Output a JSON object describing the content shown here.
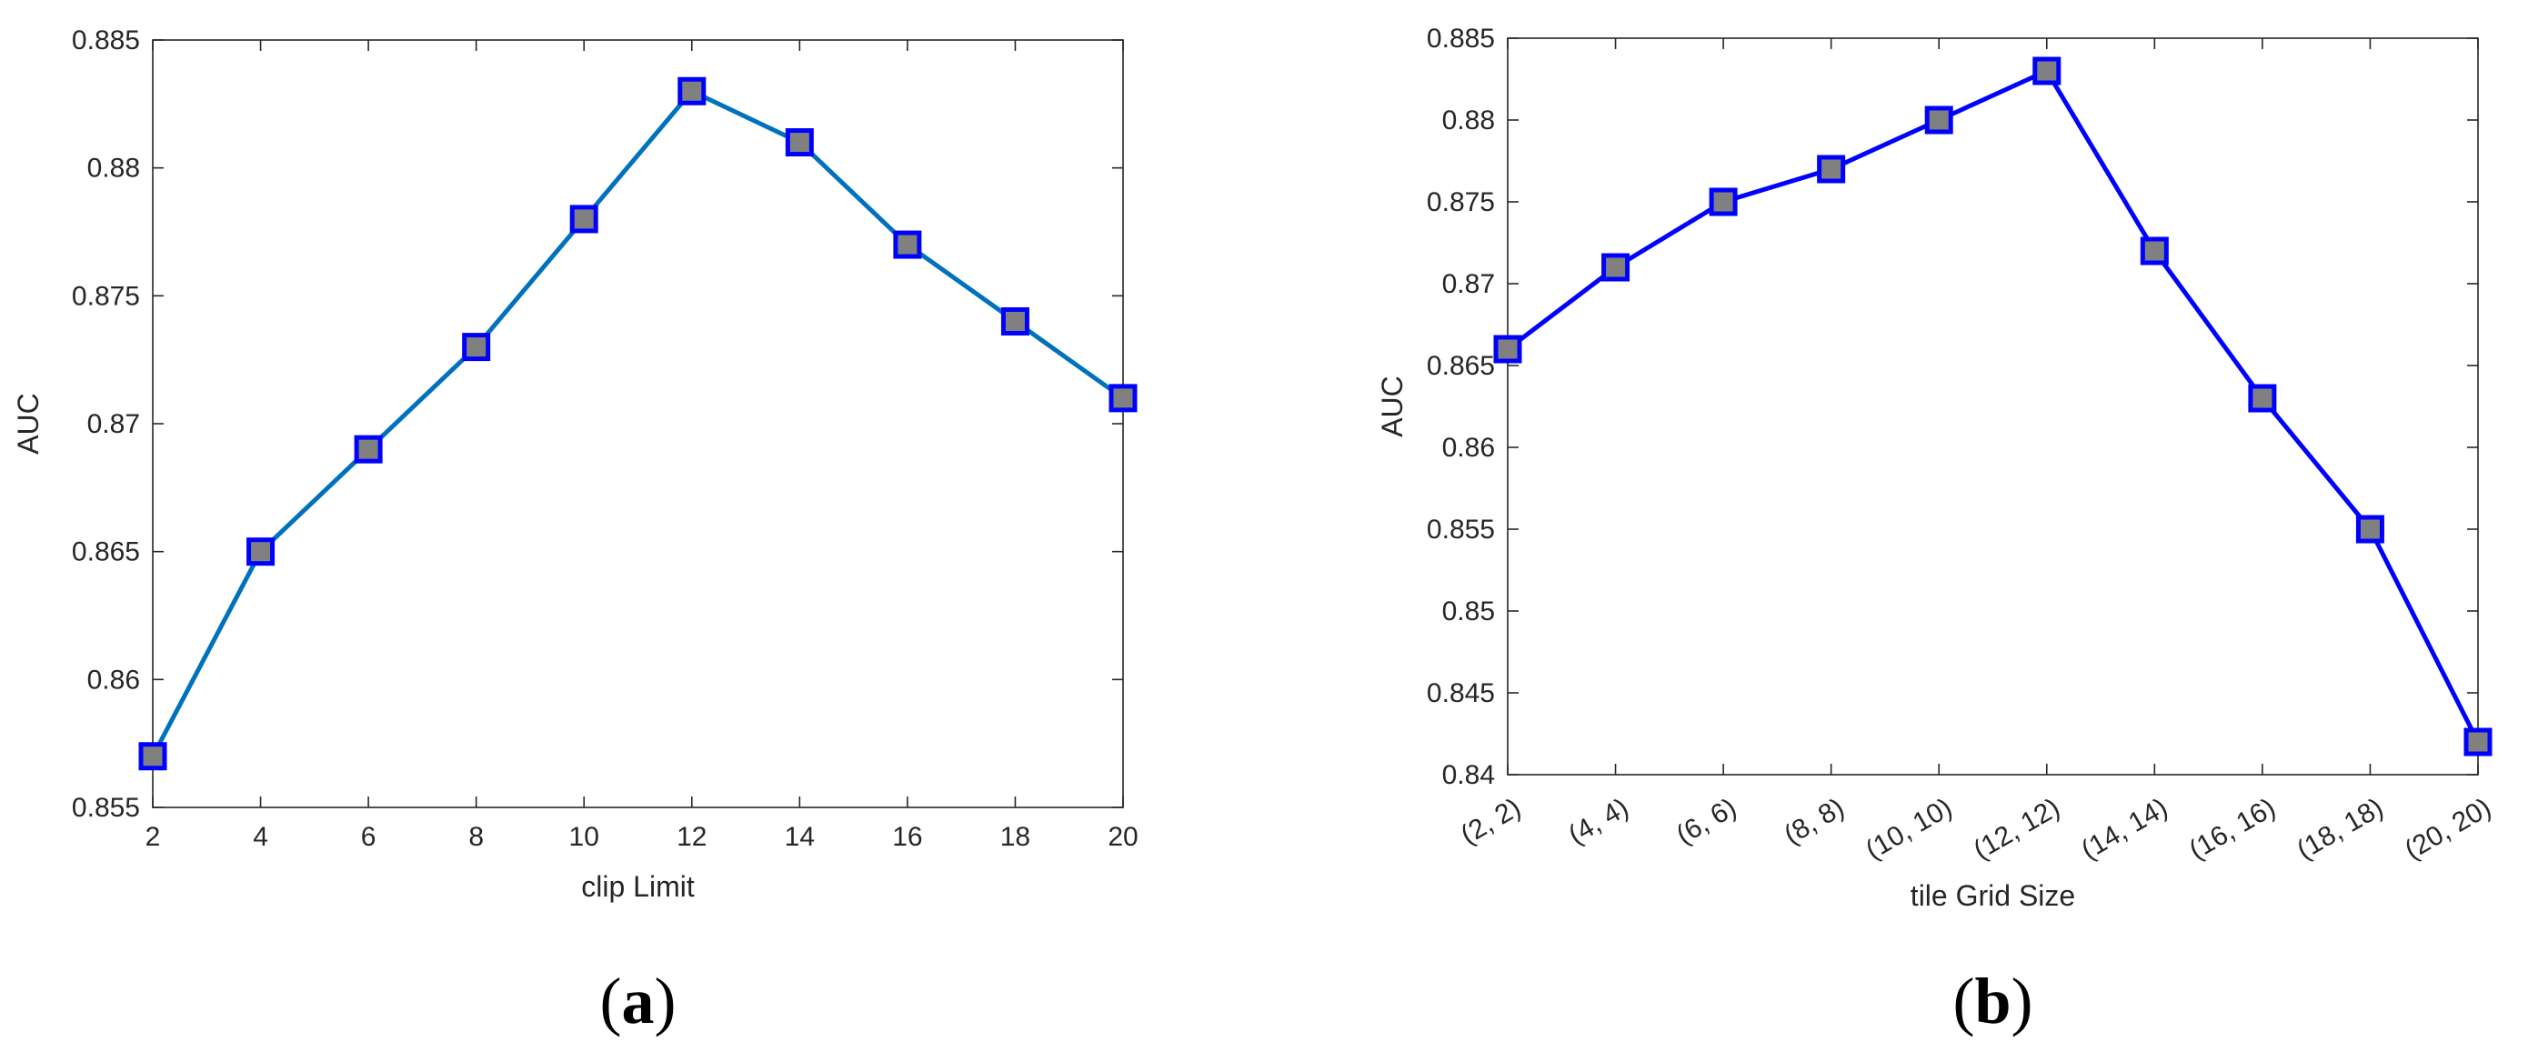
{
  "chart_data": [
    {
      "type": "line",
      "panel_label": "a",
      "xlabel": "clip Limit",
      "ylabel": "AUC",
      "x": [
        2,
        4,
        6,
        8,
        10,
        12,
        14,
        16,
        18,
        20
      ],
      "x_tick_labels": [
        "2",
        "4",
        "6",
        "8",
        "10",
        "12",
        "14",
        "16",
        "18",
        "20"
      ],
      "series": [
        {
          "values": [
            0.857,
            0.865,
            0.869,
            0.873,
            0.878,
            0.883,
            0.881,
            0.877,
            0.874,
            0.871
          ]
        }
      ],
      "xlim": [
        2,
        20
      ],
      "ylim": [
        0.855,
        0.885
      ],
      "y_ticks": [
        0.855,
        0.86,
        0.865,
        0.87,
        0.875,
        0.88,
        0.885
      ],
      "y_tick_labels": [
        "0.855",
        "0.86",
        "0.865",
        "0.87",
        "0.875",
        "0.88",
        "0.885"
      ],
      "grid": false,
      "line_color": "#0072BD",
      "marker": "square",
      "marker_fill": "#808080",
      "marker_edge": "#0000FF"
    },
    {
      "type": "line",
      "panel_label": "b",
      "xlabel": "tile Grid Size",
      "ylabel": "AUC",
      "x": [
        1,
        2,
        3,
        4,
        5,
        6,
        7,
        8,
        9,
        10
      ],
      "x_tick_labels": [
        "(2, 2)",
        "(4, 4)",
        "(6, 6)",
        "(8, 8)",
        "(10, 10)",
        "(12, 12)",
        "(14, 14)",
        "(16, 16)",
        "(18, 18)",
        "(20, 20)"
      ],
      "series": [
        {
          "values": [
            0.866,
            0.871,
            0.875,
            0.877,
            0.88,
            0.883,
            0.872,
            0.863,
            0.855,
            0.842
          ]
        }
      ],
      "xlim": [
        1,
        10
      ],
      "ylim": [
        0.84,
        0.885
      ],
      "y_ticks": [
        0.84,
        0.845,
        0.85,
        0.855,
        0.86,
        0.865,
        0.87,
        0.875,
        0.88,
        0.885
      ],
      "y_tick_labels": [
        "0.84",
        "0.845",
        "0.85",
        "0.855",
        "0.86",
        "0.865",
        "0.87",
        "0.875",
        "0.88",
        "0.885"
      ],
      "grid": false,
      "line_color": "#0000FF",
      "marker": "square",
      "marker_fill": "#808080",
      "marker_edge": "#0000FF"
    }
  ]
}
